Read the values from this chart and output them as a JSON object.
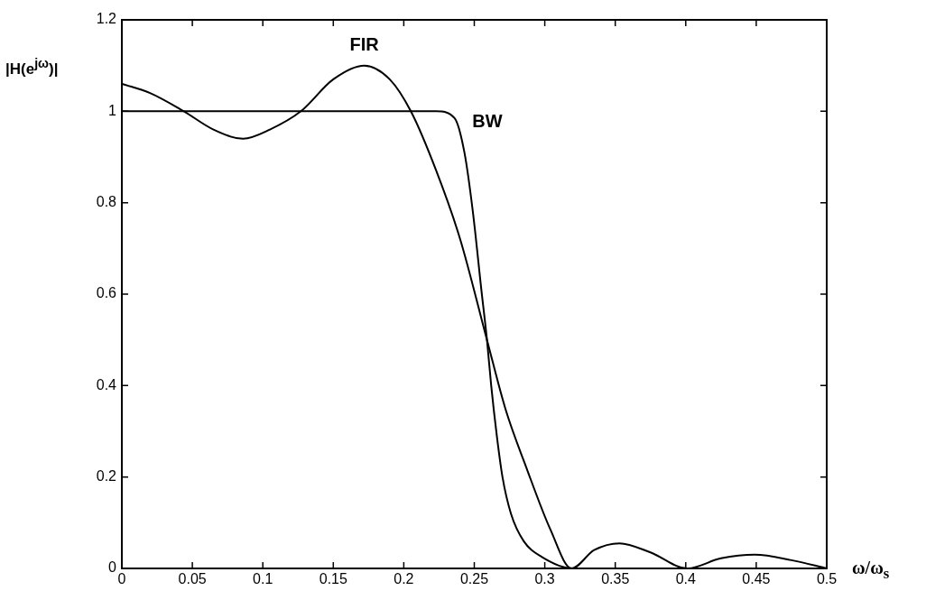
{
  "chart_data": {
    "type": "line",
    "xlabel": "ω/ω$_{s}$",
    "ylabel": "|H(e$^{jω}$)|",
    "marker": "none",
    "xlim": [
      0,
      0.5
    ],
    "xticks": [
      0,
      0.05,
      0.1,
      0.15,
      0.2,
      0.25,
      0.3,
      0.35,
      0.4,
      0.45,
      0.5
    ],
    "ylim": [
      0,
      1.2
    ],
    "yticks": [
      0,
      0.2,
      0.4,
      0.6,
      0.8,
      1,
      1.2
    ],
    "series": [
      {
        "name": "FIR",
        "color": "#000000",
        "x": [
          0,
          0.02,
          0.044,
          0.065,
          0.086,
          0.105,
          0.127,
          0.15,
          0.172,
          0.19,
          0.205,
          0.223,
          0.24,
          0.259,
          0.272,
          0.287,
          0.304,
          0.319,
          0.335,
          0.353,
          0.375,
          0.401,
          0.425,
          0.449,
          0.475,
          0.5
        ],
        "values": [
          1.06,
          1.04,
          1.0,
          0.96,
          0.94,
          0.96,
          1.0,
          1.07,
          1.1,
          1.07,
          1.0,
          0.87,
          0.72,
          0.5,
          0.35,
          0.22,
          0.085,
          0,
          0.04,
          0.055,
          0.035,
          0,
          0.022,
          0.03,
          0.018,
          0
        ]
      },
      {
        "name": "BW",
        "color": "#000000",
        "x": [
          0,
          0.1,
          0.2,
          0.223,
          0.236,
          0.243,
          0.249,
          0.255,
          0.259,
          0.262,
          0.266,
          0.27,
          0.276,
          0.285,
          0.298,
          0.32,
          0.5
        ],
        "values": [
          1,
          1,
          1,
          1,
          0.985,
          0.91,
          0.78,
          0.61,
          0.5,
          0.4,
          0.29,
          0.2,
          0.12,
          0.06,
          0.025,
          0,
          0
        ]
      }
    ]
  }
}
